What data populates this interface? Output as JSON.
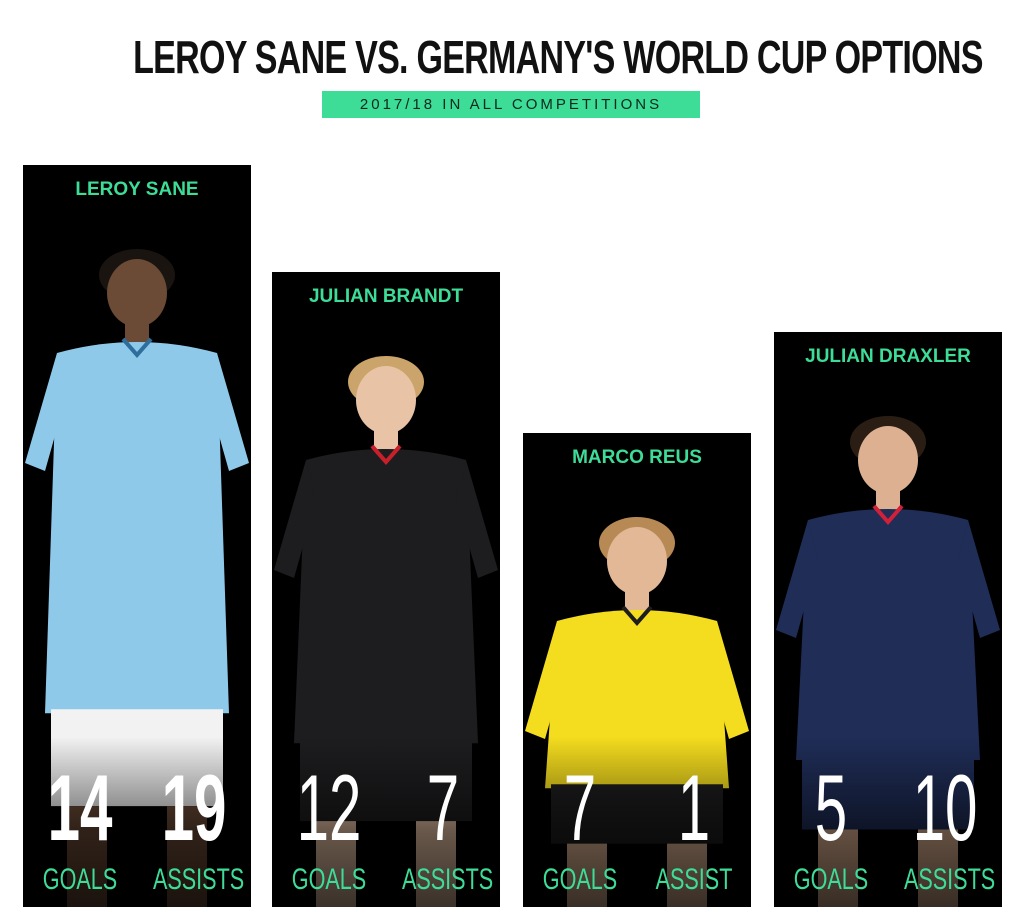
{
  "title": "LEROY SANE VS. GERMANY'S WORLD CUP OPTIONS",
  "subtitle": "2017/18 IN ALL COMPETITIONS",
  "colors": {
    "accent": "#3ddc97",
    "subtitle_bg": "#3ddc97",
    "panel_bg": "#000000",
    "number_text": "#ffffff"
  },
  "chart_data": {
    "type": "bar",
    "title": "LEROY SANE VS. GERMANY'S WORLD CUP OPTIONS",
    "subtitle": "2017/18 IN ALL COMPETITIONS",
    "categories": [
      "LEROY SANE",
      "JULIAN BRANDT",
      "MARCO REUS",
      "JULIAN DRAXLER"
    ],
    "series": [
      {
        "name": "GOALS",
        "values": [
          14,
          12,
          7,
          5
        ]
      },
      {
        "name": "ASSISTS",
        "values": [
          19,
          7,
          1,
          10
        ]
      }
    ],
    "value_labels": [
      {
        "goals_label": "GOALS",
        "assists_label": "ASSISTS"
      },
      {
        "goals_label": "GOALS",
        "assists_label": "ASSISTS"
      },
      {
        "goals_label": "GOALS",
        "assists_label": "ASSIST"
      },
      {
        "goals_label": "GOALS",
        "assists_label": "ASSISTS"
      }
    ],
    "bar_heights_shown_by": "total goals + assists",
    "grid": false,
    "legend": "none"
  },
  "players": [
    {
      "name": "LEROY SANE",
      "goals": "14",
      "assists": "19",
      "goals_label": "GOALS",
      "assists_label": "ASSISTS",
      "kit": "sky-blue",
      "weight": "bold"
    },
    {
      "name": "JULIAN BRANDT",
      "goals": "12",
      "assists": "7",
      "goals_label": "GOALS",
      "assists_label": "ASSISTS",
      "kit": "black-red",
      "weight": "thin"
    },
    {
      "name": "MARCO REUS",
      "goals": "7",
      "assists": "1",
      "goals_label": "GOALS",
      "assists_label": "ASSIST",
      "kit": "yellow",
      "weight": "thin"
    },
    {
      "name": "JULIAN DRAXLER",
      "goals": "5",
      "assists": "10",
      "goals_label": "GOALS",
      "assists_label": "ASSISTS",
      "kit": "navy",
      "weight": "thin"
    }
  ]
}
